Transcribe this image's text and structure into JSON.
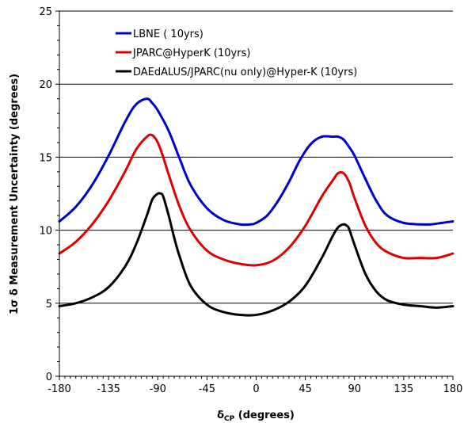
{
  "chart_data": {
    "type": "line",
    "xlabel": "δ (degrees)",
    "xlabel_symbol": "δ",
    "xlabel_subscript": "CP",
    "xlabel_rest": " (degrees)",
    "ylabel": "1σ δ Measurement Uncertainty (degrees)",
    "xlim": [
      -180,
      180
    ],
    "ylim": [
      0,
      25
    ],
    "xticks": [
      -180,
      -135,
      -90,
      -45,
      0,
      45,
      90,
      135,
      180
    ],
    "yticks": [
      0,
      5,
      10,
      15,
      20,
      25
    ],
    "xtick_labels": [
      "-180",
      "-135",
      "-90",
      "-45",
      "0",
      "45",
      "90",
      "135",
      "180"
    ],
    "ytick_labels": [
      "0",
      "5",
      "10",
      "15",
      "20",
      "25"
    ],
    "grid": "horizontal",
    "legend_position": "top-left",
    "series": [
      {
        "name": "LBNE ( 10yrs)",
        "color": "#0000cc",
        "x": [
          -180,
          -165,
          -150,
          -135,
          -120,
          -110,
          -100,
          -95,
          -90,
          -80,
          -70,
          -60,
          -45,
          -30,
          -15,
          -5,
          0,
          10,
          20,
          30,
          40,
          50,
          60,
          70,
          75,
          80,
          85,
          90,
          100,
          110,
          120,
          135,
          150,
          160,
          170,
          180
        ],
        "y": [
          10.6,
          11.6,
          13.1,
          15.1,
          17.4,
          18.6,
          19.0,
          18.7,
          18.2,
          16.8,
          14.9,
          13.1,
          11.5,
          10.7,
          10.4,
          10.4,
          10.5,
          11.0,
          12.0,
          13.3,
          14.8,
          15.9,
          16.4,
          16.4,
          16.4,
          16.2,
          15.7,
          15.1,
          13.5,
          12.0,
          11.0,
          10.5,
          10.4,
          10.4,
          10.5,
          10.6
        ]
      },
      {
        "name": "JPARC@HyperK (10yrs)",
        "color": "#dd0000",
        "x": [
          -180,
          -165,
          -150,
          -135,
          -120,
          -110,
          -100,
          -95,
          -90,
          -85,
          -80,
          -70,
          -60,
          -45,
          -30,
          -15,
          0,
          15,
          30,
          45,
          60,
          70,
          75,
          80,
          85,
          90,
          100,
          110,
          120,
          135,
          150,
          165,
          180
        ],
        "y": [
          8.4,
          9.2,
          10.4,
          12.0,
          14.0,
          15.5,
          16.4,
          16.5,
          16.0,
          15.0,
          13.8,
          11.6,
          10.0,
          8.6,
          8.0,
          7.7,
          7.6,
          7.9,
          8.8,
          10.3,
          12.3,
          13.4,
          13.9,
          13.9,
          13.3,
          12.2,
          10.3,
          9.1,
          8.5,
          8.1,
          8.1,
          8.1,
          8.4
        ]
      },
      {
        "name": "DAEdALUS/JPARC(nu only)@Hyper-K (10yrs)",
        "color": "#000000",
        "x": [
          -180,
          -165,
          -150,
          -135,
          -120,
          -110,
          -100,
          -95,
          -90,
          -87,
          -85,
          -80,
          -75,
          -70,
          -60,
          -45,
          -30,
          -15,
          0,
          15,
          30,
          45,
          60,
          70,
          75,
          80,
          83,
          85,
          90,
          100,
          110,
          120,
          135,
          150,
          165,
          180
        ],
        "y": [
          4.8,
          5.0,
          5.4,
          6.1,
          7.5,
          9.0,
          11.0,
          12.1,
          12.5,
          12.5,
          12.3,
          11.0,
          9.5,
          8.2,
          6.2,
          4.9,
          4.4,
          4.2,
          4.2,
          4.5,
          5.1,
          6.2,
          8.1,
          9.6,
          10.2,
          10.4,
          10.3,
          10.1,
          9.0,
          7.0,
          5.8,
          5.2,
          4.9,
          4.8,
          4.7,
          4.8
        ]
      }
    ]
  }
}
